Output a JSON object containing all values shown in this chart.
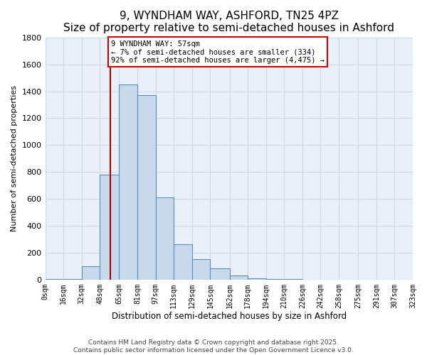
{
  "title": "9, WYNDHAM WAY, ASHFORD, TN25 4PZ",
  "subtitle": "Size of property relative to semi-detached houses in Ashford",
  "xlabel": "Distribution of semi-detached houses by size in Ashford",
  "ylabel": "Number of semi-detached properties",
  "bin_edges": [
    0,
    16,
    32,
    48,
    65,
    81,
    97,
    113,
    129,
    145,
    162,
    178,
    194,
    210,
    226,
    242,
    258,
    275,
    291,
    307,
    323
  ],
  "bar_heights": [
    3,
    3,
    100,
    780,
    1450,
    1370,
    610,
    265,
    150,
    85,
    30,
    12,
    3,
    2,
    0,
    0,
    0,
    0,
    0,
    0
  ],
  "bar_color": "#c9d9ec",
  "bar_edge_color": "#5b8db8",
  "property_size": 57,
  "red_line_color": "#aa0000",
  "annotation_text": "9 WYNDHAM WAY: 57sqm\n← 7% of semi-detached houses are smaller (334)\n92% of semi-detached houses are larger (4,475) →",
  "annotation_box_color": "#cc0000",
  "annotation_bg_color": "#ffffff",
  "ylim": [
    0,
    1800
  ],
  "tick_labels": [
    "0sqm",
    "16sqm",
    "32sqm",
    "48sqm",
    "65sqm",
    "81sqm",
    "97sqm",
    "113sqm",
    "129sqm",
    "145sqm",
    "162sqm",
    "178sqm",
    "194sqm",
    "210sqm",
    "226sqm",
    "242sqm",
    "258sqm",
    "275sqm",
    "291sqm",
    "307sqm",
    "323sqm"
  ],
  "background_color": "#eaf0f8",
  "grid_color": "#d0d8e8",
  "footer_text": "Contains HM Land Registry data © Crown copyright and database right 2025.\nContains public sector information licensed under the Open Government Licence v3.0.",
  "title_fontsize": 11,
  "ylabel_fontsize": 8,
  "xlabel_fontsize": 8.5,
  "tick_fontsize": 7,
  "annotation_fontsize": 7.5,
  "footer_fontsize": 6.5
}
